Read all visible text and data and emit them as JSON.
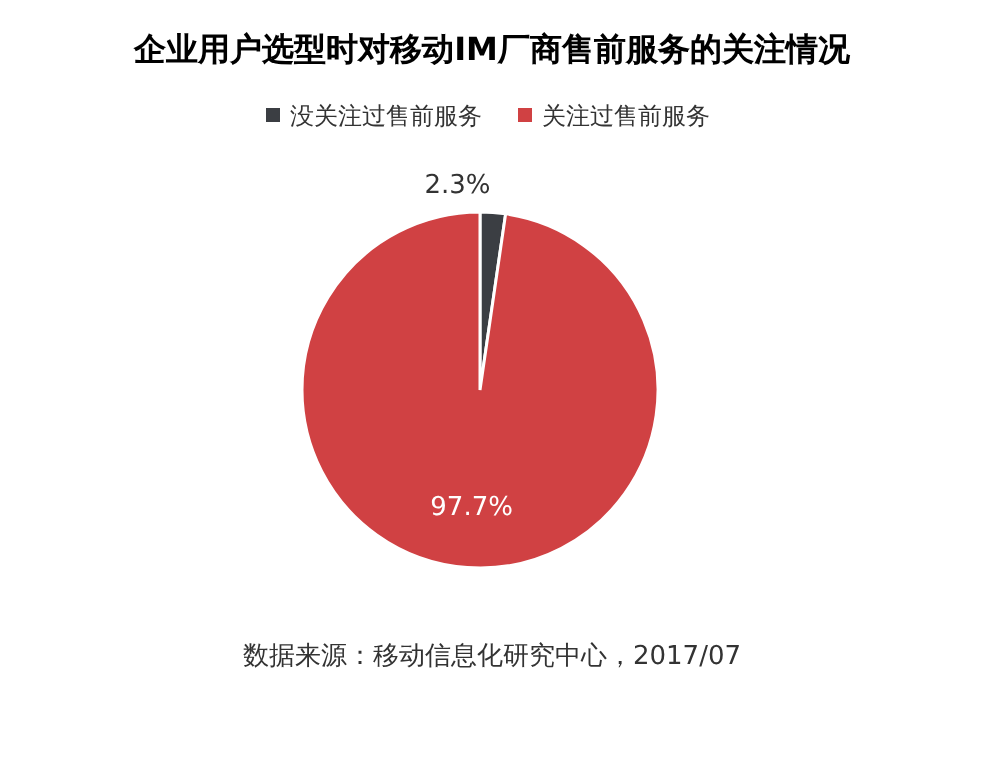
{
  "chart_data": {
    "type": "pie",
    "title": "企业用户选型时对移动IM厂商售前服务的关注情况",
    "categories": [
      "没关注过售前服务",
      "关注过售前服务"
    ],
    "values": [
      2.3,
      97.7
    ],
    "colors": [
      "#3b3e43",
      "#d04143"
    ],
    "value_labels": [
      "2.3%",
      "97.7%"
    ],
    "legend": "top",
    "annotations": [
      "数据来源：移动信息化研究中心，2017/07"
    ]
  }
}
